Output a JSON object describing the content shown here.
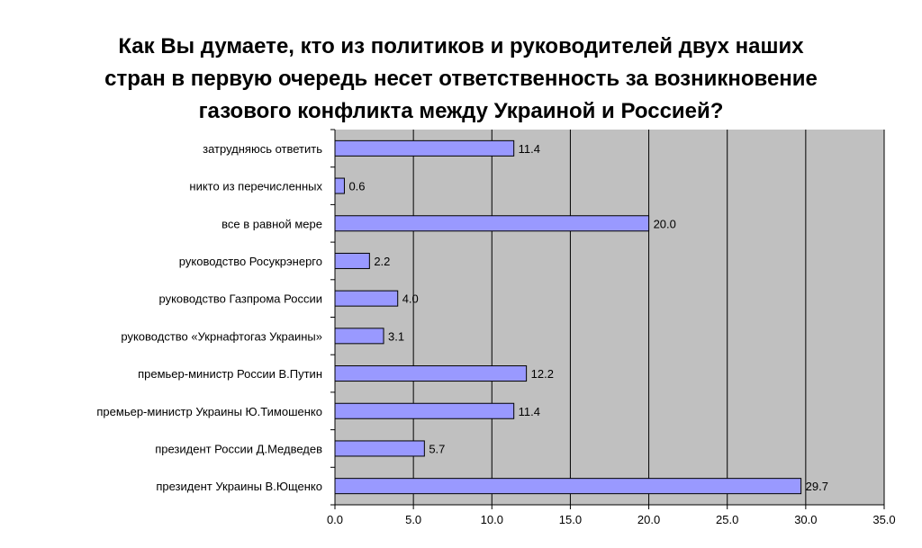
{
  "chart_data": {
    "type": "bar",
    "orientation": "horizontal",
    "title": "Как Вы думаете, кто из политиков и руководителей двух наших\nстран в первую очередь несет ответственность за возникновение\nгазового конфликта между Украиной и Россией?",
    "categories": [
      "затрудняюсь ответить",
      "никто из перечисленных",
      "все в равной мере",
      "руководство Росукрэнерго",
      "руководство Газпрома России",
      "руководство «Укрнафтогаз Украины»",
      "премьер-министр России В.Путин",
      "премьер-министр Украины Ю.Тимошенко",
      "президент России Д.Медведев",
      "президент Украины В.Ющенко"
    ],
    "values": [
      11.4,
      0.6,
      20.0,
      2.2,
      4.0,
      3.1,
      12.2,
      11.4,
      5.7,
      29.7
    ],
    "value_labels": [
      "11.4",
      "0.6",
      "20.0",
      "2.2",
      "4.0",
      "3.1",
      "12.2",
      "11.4",
      "5.7",
      "29.7"
    ],
    "xlim": [
      0,
      35
    ],
    "xticks": [
      "0.0",
      "5.0",
      "10.0",
      "15.0",
      "20.0",
      "25.0",
      "30.0",
      "35.0"
    ],
    "grid": true,
    "colors": {
      "bar": "#9999ff",
      "bar_stroke": "#000000",
      "plot_background": "#c0c0c0",
      "gridline": "#000000"
    }
  }
}
